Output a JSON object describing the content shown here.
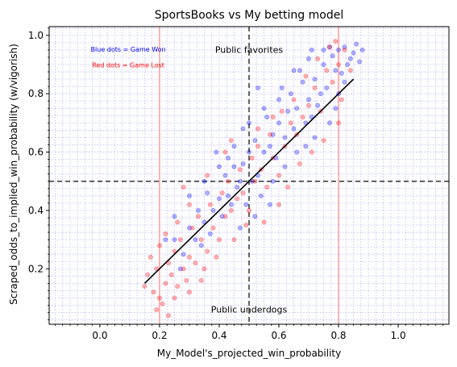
{
  "chart_data": {
    "type": "scatter",
    "title": "SportsBooks vs My betting model",
    "xlabel": "My_Model's_projected_win_probability",
    "ylabel": "Scraped_odds_to_implied_win_probability (w/vigorish)",
    "xlim": [
      -0.17,
      1.17
    ],
    "ylim": [
      0.01,
      1.03
    ],
    "x_ticks": [
      0.0,
      0.2,
      0.4,
      0.6,
      0.8,
      1.0
    ],
    "x_tick_labels": [
      "0.0",
      "0.2",
      "0.4",
      "0.6",
      "0.8",
      "1.0"
    ],
    "y_ticks": [
      0.2,
      0.4,
      0.6,
      0.8,
      1.0
    ],
    "y_tick_labels": [
      "0.2",
      "0.4",
      "0.6",
      "0.8",
      "1.0"
    ],
    "grid": true,
    "minor_grid": true,
    "series": [
      {
        "name": "Game Won",
        "color": "#0000ff",
        "points": [
          [
            0.78,
            0.93
          ],
          [
            0.8,
            0.95
          ],
          [
            0.82,
            0.96
          ],
          [
            0.84,
            0.92
          ],
          [
            0.79,
            0.88
          ],
          [
            0.75,
            0.9
          ],
          [
            0.72,
            0.85
          ],
          [
            0.76,
            0.82
          ],
          [
            0.81,
            0.87
          ],
          [
            0.83,
            0.9
          ],
          [
            0.86,
            0.97
          ],
          [
            0.77,
            0.96
          ],
          [
            0.74,
            0.8
          ],
          [
            0.7,
            0.78
          ],
          [
            0.68,
            0.84
          ],
          [
            0.66,
            0.75
          ],
          [
            0.71,
            0.72
          ],
          [
            0.73,
            0.76
          ],
          [
            0.69,
            0.7
          ],
          [
            0.65,
            0.68
          ],
          [
            0.63,
            0.74
          ],
          [
            0.6,
            0.7
          ],
          [
            0.62,
            0.65
          ],
          [
            0.58,
            0.66
          ],
          [
            0.56,
            0.72
          ],
          [
            0.55,
            0.6
          ],
          [
            0.57,
            0.62
          ],
          [
            0.59,
            0.58
          ],
          [
            0.52,
            0.64
          ],
          [
            0.5,
            0.6
          ],
          [
            0.48,
            0.56
          ],
          [
            0.53,
            0.52
          ],
          [
            0.51,
            0.5
          ],
          [
            0.47,
            0.5
          ],
          [
            0.45,
            0.55
          ],
          [
            0.46,
            0.48
          ],
          [
            0.43,
            0.45
          ],
          [
            0.42,
            0.52
          ],
          [
            0.44,
            0.42
          ],
          [
            0.4,
            0.44
          ],
          [
            0.38,
            0.4
          ],
          [
            0.36,
            0.46
          ],
          [
            0.41,
            0.38
          ],
          [
            0.35,
            0.36
          ],
          [
            0.33,
            0.4
          ],
          [
            0.37,
            0.32
          ],
          [
            0.32,
            0.3
          ],
          [
            0.3,
            0.34
          ],
          [
            0.34,
            0.28
          ],
          [
            0.28,
            0.25
          ],
          [
            0.25,
            0.3
          ],
          [
            0.27,
            0.2
          ],
          [
            0.64,
            0.8
          ],
          [
            0.67,
            0.88
          ],
          [
            0.6,
            0.78
          ],
          [
            0.55,
            0.75
          ],
          [
            0.5,
            0.7
          ],
          [
            0.58,
            0.5
          ],
          [
            0.62,
            0.55
          ],
          [
            0.54,
            0.45
          ],
          [
            0.49,
            0.42
          ],
          [
            0.61,
            0.82
          ],
          [
            0.7,
            0.92
          ],
          [
            0.75,
            0.95
          ],
          [
            0.85,
            0.94
          ],
          [
            0.79,
            0.75
          ],
          [
            0.77,
            0.7
          ],
          [
            0.72,
            0.65
          ],
          [
            0.4,
            0.55
          ],
          [
            0.35,
            0.5
          ],
          [
            0.3,
            0.45
          ],
          [
            0.25,
            0.38
          ],
          [
            0.22,
            0.3
          ],
          [
            0.52,
            0.38
          ],
          [
            0.47,
            0.34
          ],
          [
            0.57,
            0.42
          ],
          [
            0.66,
            0.6
          ],
          [
            0.69,
            0.62
          ],
          [
            0.8,
            0.8
          ],
          [
            0.82,
            0.84
          ],
          [
            0.45,
            0.62
          ],
          [
            0.39,
            0.6
          ],
          [
            0.48,
            0.68
          ],
          [
            0.43,
            0.58
          ],
          [
            0.53,
            0.82
          ],
          [
            0.88,
            0.95
          ],
          [
            0.87,
            0.91
          ],
          [
            0.65,
            0.88
          ],
          [
            0.71,
            0.95
          ]
        ]
      },
      {
        "name": "Game Lost",
        "color": "#ff0000",
        "points": [
          [
            0.18,
            0.12
          ],
          [
            0.2,
            0.1
          ],
          [
            0.22,
            0.15
          ],
          [
            0.19,
            0.2
          ],
          [
            0.24,
            0.18
          ],
          [
            0.21,
            0.08
          ],
          [
            0.23,
            0.22
          ],
          [
            0.26,
            0.14
          ],
          [
            0.25,
            0.26
          ],
          [
            0.28,
            0.2
          ],
          [
            0.3,
            0.24
          ],
          [
            0.27,
            0.3
          ],
          [
            0.32,
            0.22
          ],
          [
            0.29,
            0.16
          ],
          [
            0.31,
            0.34
          ],
          [
            0.34,
            0.3
          ],
          [
            0.36,
            0.26
          ],
          [
            0.33,
            0.38
          ],
          [
            0.38,
            0.34
          ],
          [
            0.4,
            0.3
          ],
          [
            0.37,
            0.42
          ],
          [
            0.42,
            0.38
          ],
          [
            0.41,
            0.46
          ],
          [
            0.44,
            0.4
          ],
          [
            0.46,
            0.44
          ],
          [
            0.43,
            0.5
          ],
          [
            0.48,
            0.46
          ],
          [
            0.5,
            0.4
          ],
          [
            0.47,
            0.54
          ],
          [
            0.52,
            0.5
          ],
          [
            0.51,
            0.58
          ],
          [
            0.54,
            0.54
          ],
          [
            0.56,
            0.48
          ],
          [
            0.53,
            0.62
          ],
          [
            0.58,
            0.58
          ],
          [
            0.6,
            0.52
          ],
          [
            0.57,
            0.66
          ],
          [
            0.62,
            0.62
          ],
          [
            0.64,
            0.7
          ],
          [
            0.61,
            0.74
          ],
          [
            0.66,
            0.66
          ],
          [
            0.68,
            0.72
          ],
          [
            0.65,
            0.78
          ],
          [
            0.7,
            0.76
          ],
          [
            0.72,
            0.82
          ],
          [
            0.69,
            0.86
          ],
          [
            0.74,
            0.74
          ],
          [
            0.76,
            0.88
          ],
          [
            0.73,
            0.92
          ],
          [
            0.78,
            0.84
          ],
          [
            0.8,
            0.9
          ],
          [
            0.16,
            0.18
          ],
          [
            0.2,
            0.28
          ],
          [
            0.26,
            0.36
          ],
          [
            0.35,
            0.2
          ],
          [
            0.39,
            0.24
          ],
          [
            0.45,
            0.3
          ],
          [
            0.55,
            0.36
          ],
          [
            0.6,
            0.42
          ],
          [
            0.49,
            0.35
          ],
          [
            0.63,
            0.48
          ],
          [
            0.67,
            0.56
          ],
          [
            0.71,
            0.6
          ],
          [
            0.75,
            0.64
          ],
          [
            0.8,
            0.7
          ],
          [
            0.3,
            0.42
          ],
          [
            0.28,
            0.48
          ],
          [
            0.36,
            0.52
          ],
          [
            0.42,
            0.6
          ],
          [
            0.22,
            0.32
          ],
          [
            0.25,
            0.1
          ],
          [
            0.3,
            0.12
          ],
          [
            0.34,
            0.16
          ],
          [
            0.19,
            0.06
          ],
          [
            0.23,
            0.04
          ],
          [
            0.58,
            0.72
          ],
          [
            0.53,
            0.68
          ],
          [
            0.44,
            0.64
          ],
          [
            0.77,
            0.96
          ],
          [
            0.82,
            0.95
          ],
          [
            0.84,
            0.88
          ],
          [
            0.81,
            0.78
          ],
          [
            0.79,
            0.98
          ],
          [
            0.15,
            0.14
          ],
          [
            0.17,
            0.24
          ]
        ]
      }
    ],
    "trend_line": {
      "from": [
        0.15,
        0.15
      ],
      "to": [
        0.85,
        0.85
      ],
      "color": "#000000"
    },
    "reference_lines": {
      "vertical_dashed": [
        0.5
      ],
      "horizontal_dashed": [
        0.5
      ],
      "vertical_solid": [
        0.2,
        0.8
      ]
    },
    "annotations": [
      {
        "text": "Blue dots = Game Won",
        "x": 0.095,
        "y": 0.945,
        "color": "#0000ff",
        "size": "small"
      },
      {
        "text": "Red dots = Game Lost",
        "x": 0.095,
        "y": 0.89,
        "color": "#ff0000",
        "size": "small"
      },
      {
        "text": "Public favorites",
        "x": 0.5,
        "y": 0.94,
        "color": "#000000",
        "size": "normal"
      },
      {
        "text": "Public underdogs",
        "x": 0.5,
        "y": 0.05,
        "color": "#000000",
        "size": "normal"
      }
    ]
  }
}
